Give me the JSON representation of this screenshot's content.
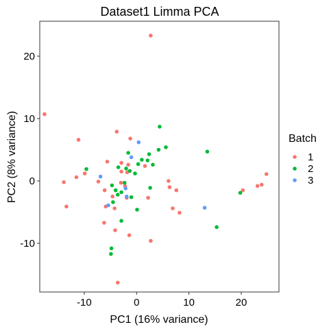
{
  "chart_data": {
    "type": "scatter",
    "title": "Dataset1 Limma PCA",
    "xlabel": "PC1 (16% variance)",
    "ylabel": "PC2 (8% variance)",
    "xlim": [
      -18.5,
      27.2
    ],
    "ylim": [
      -17.8,
      25.6
    ],
    "x_ticks": [
      -10,
      0,
      10,
      20
    ],
    "y_ticks": [
      -10,
      0,
      10,
      20
    ],
    "grid": false,
    "legend_position": "right",
    "legend_title": "Batch",
    "series": [
      {
        "name": "1",
        "color": "#F8766D",
        "points": [
          [
            2.7,
            23.3
          ],
          [
            -17.6,
            10.7
          ],
          [
            -11.1,
            6.6
          ],
          [
            -3.8,
            7.9
          ],
          [
            -1.2,
            6.8
          ],
          [
            -5.6,
            3.1
          ],
          [
            -2.9,
            2.9
          ],
          [
            -1.6,
            2.6
          ],
          [
            1.6,
            2.4
          ],
          [
            -9.9,
            1.2
          ],
          [
            -11.5,
            0.6
          ],
          [
            -13.9,
            -0.2
          ],
          [
            -2.9,
            1.5
          ],
          [
            -1.8,
            1.4
          ],
          [
            -7.3,
            -0.1
          ],
          [
            -3.0,
            -0.3
          ],
          [
            -2.2,
            -0.8
          ],
          [
            6.1,
            0.0
          ],
          [
            6.3,
            -1.0
          ],
          [
            7.6,
            -1.5
          ],
          [
            -6.1,
            -1.5
          ],
          [
            -4.6,
            -2.5
          ],
          [
            -13.4,
            -4.1
          ],
          [
            -5.9,
            -4.1
          ],
          [
            -4.2,
            -4.4
          ],
          [
            -1.9,
            -2.7
          ],
          [
            2.2,
            -2.7
          ],
          [
            6.9,
            -4.4
          ],
          [
            8.2,
            -5.1
          ],
          [
            -6.2,
            -6.7
          ],
          [
            -4.1,
            -7.9
          ],
          [
            -1.4,
            -8.7
          ],
          [
            2.7,
            -9.6
          ],
          [
            -3.6,
            -16.3
          ],
          [
            20.3,
            -1.5
          ],
          [
            23.1,
            -0.8
          ],
          [
            23.9,
            -0.6
          ],
          [
            24.8,
            1.1
          ]
        ]
      },
      {
        "name": "2",
        "color": "#00BA38",
        "points": [
          [
            4.4,
            8.7
          ],
          [
            4.2,
            5.0
          ],
          [
            5.6,
            5.4
          ],
          [
            -1.6,
            4.5
          ],
          [
            2.4,
            4.3
          ],
          [
            -9.6,
            1.9
          ],
          [
            -3.5,
            2.2
          ],
          [
            0.3,
            2.7
          ],
          [
            1.0,
            3.4
          ],
          [
            2.1,
            3.3
          ],
          [
            3.1,
            2.6
          ],
          [
            -2.0,
            2.0
          ],
          [
            -1.3,
            1.6
          ],
          [
            -0.3,
            1.2
          ],
          [
            13.5,
            4.7
          ],
          [
            -2.3,
            -0.3
          ],
          [
            -4.7,
            -0.7
          ],
          [
            2.6,
            -1.1
          ],
          [
            -4.0,
            -1.5
          ],
          [
            -2.9,
            -1.8
          ],
          [
            -3.6,
            -2.2
          ],
          [
            -4.5,
            -3.4
          ],
          [
            -1.0,
            -2.6
          ],
          [
            0.1,
            -4.6
          ],
          [
            -2.9,
            -6.4
          ],
          [
            15.3,
            -7.4
          ],
          [
            -4.8,
            -10.8
          ],
          [
            -4.9,
            -11.7
          ],
          [
            19.8,
            -1.9
          ]
        ]
      },
      {
        "name": "3",
        "color": "#619CFF",
        "points": [
          [
            0.4,
            6.2
          ],
          [
            -1.0,
            3.8
          ],
          [
            -6.9,
            0.7
          ],
          [
            -2.1,
            -1.2
          ],
          [
            -1.9,
            -2.5
          ],
          [
            -5.4,
            -3.9
          ],
          [
            13.0,
            -4.3
          ]
        ]
      }
    ]
  }
}
